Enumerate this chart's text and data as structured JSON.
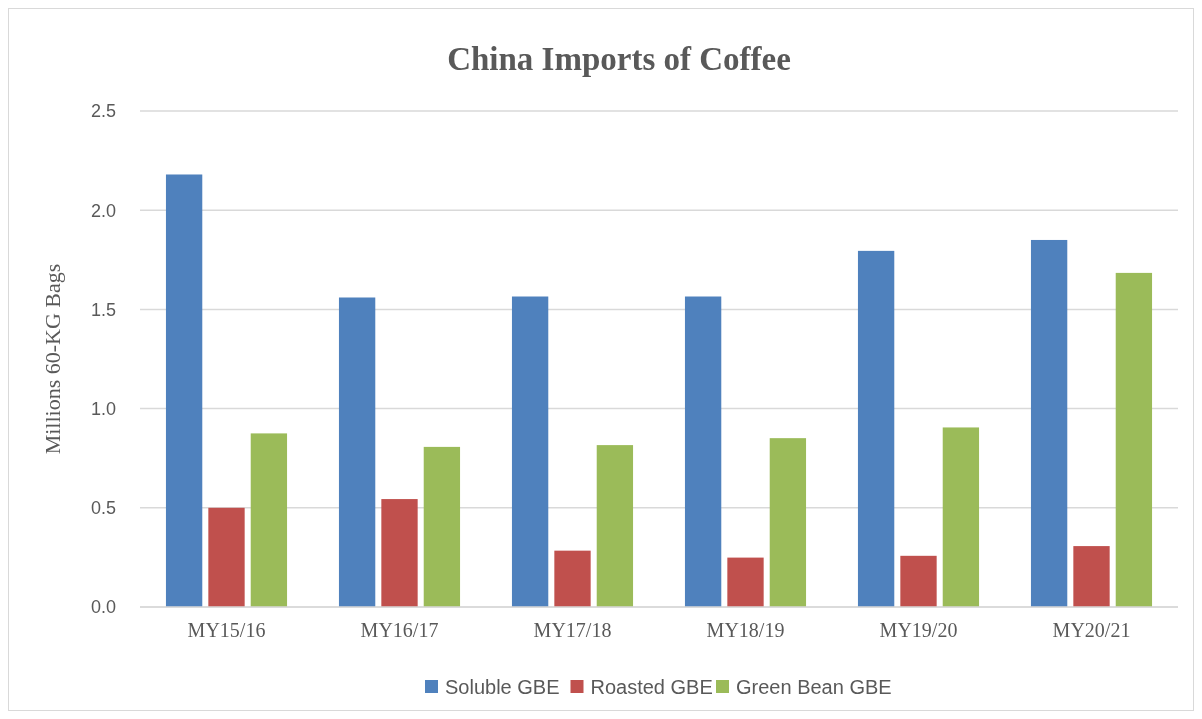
{
  "chart_data": {
    "type": "bar",
    "title": "China Imports of Coffee",
    "ylabel": "Millions 60-KG Bags",
    "categories": [
      "MY15/16",
      "MY16/17",
      "MY17/18",
      "MY18/19",
      "MY19/20",
      "MY20/21"
    ],
    "series": [
      {
        "name": "Soluble GBE",
        "color": "#4f81bd",
        "values": [
          2.18,
          1.56,
          1.565,
          1.565,
          1.795,
          1.85
        ]
      },
      {
        "name": "Roasted GBE",
        "color": "#c0504d",
        "values": [
          0.5,
          0.544,
          0.284,
          0.249,
          0.258,
          0.307
        ]
      },
      {
        "name": "Green Bean GBE",
        "color": "#9bbb59",
        "values": [
          0.875,
          0.807,
          0.816,
          0.851,
          0.905,
          1.684
        ]
      }
    ],
    "ylim": [
      0,
      2.5
    ],
    "yticks": [
      {
        "value": 0,
        "label": "0.0"
      },
      {
        "value": 0.5,
        "label": "0.5"
      },
      {
        "value": 1,
        "label": "1.0"
      },
      {
        "value": 1.5,
        "label": "1.5"
      },
      {
        "value": 2,
        "label": "2.0"
      },
      {
        "value": 2.5,
        "label": "2.5"
      }
    ],
    "grid": "y",
    "legend": "bottom"
  }
}
